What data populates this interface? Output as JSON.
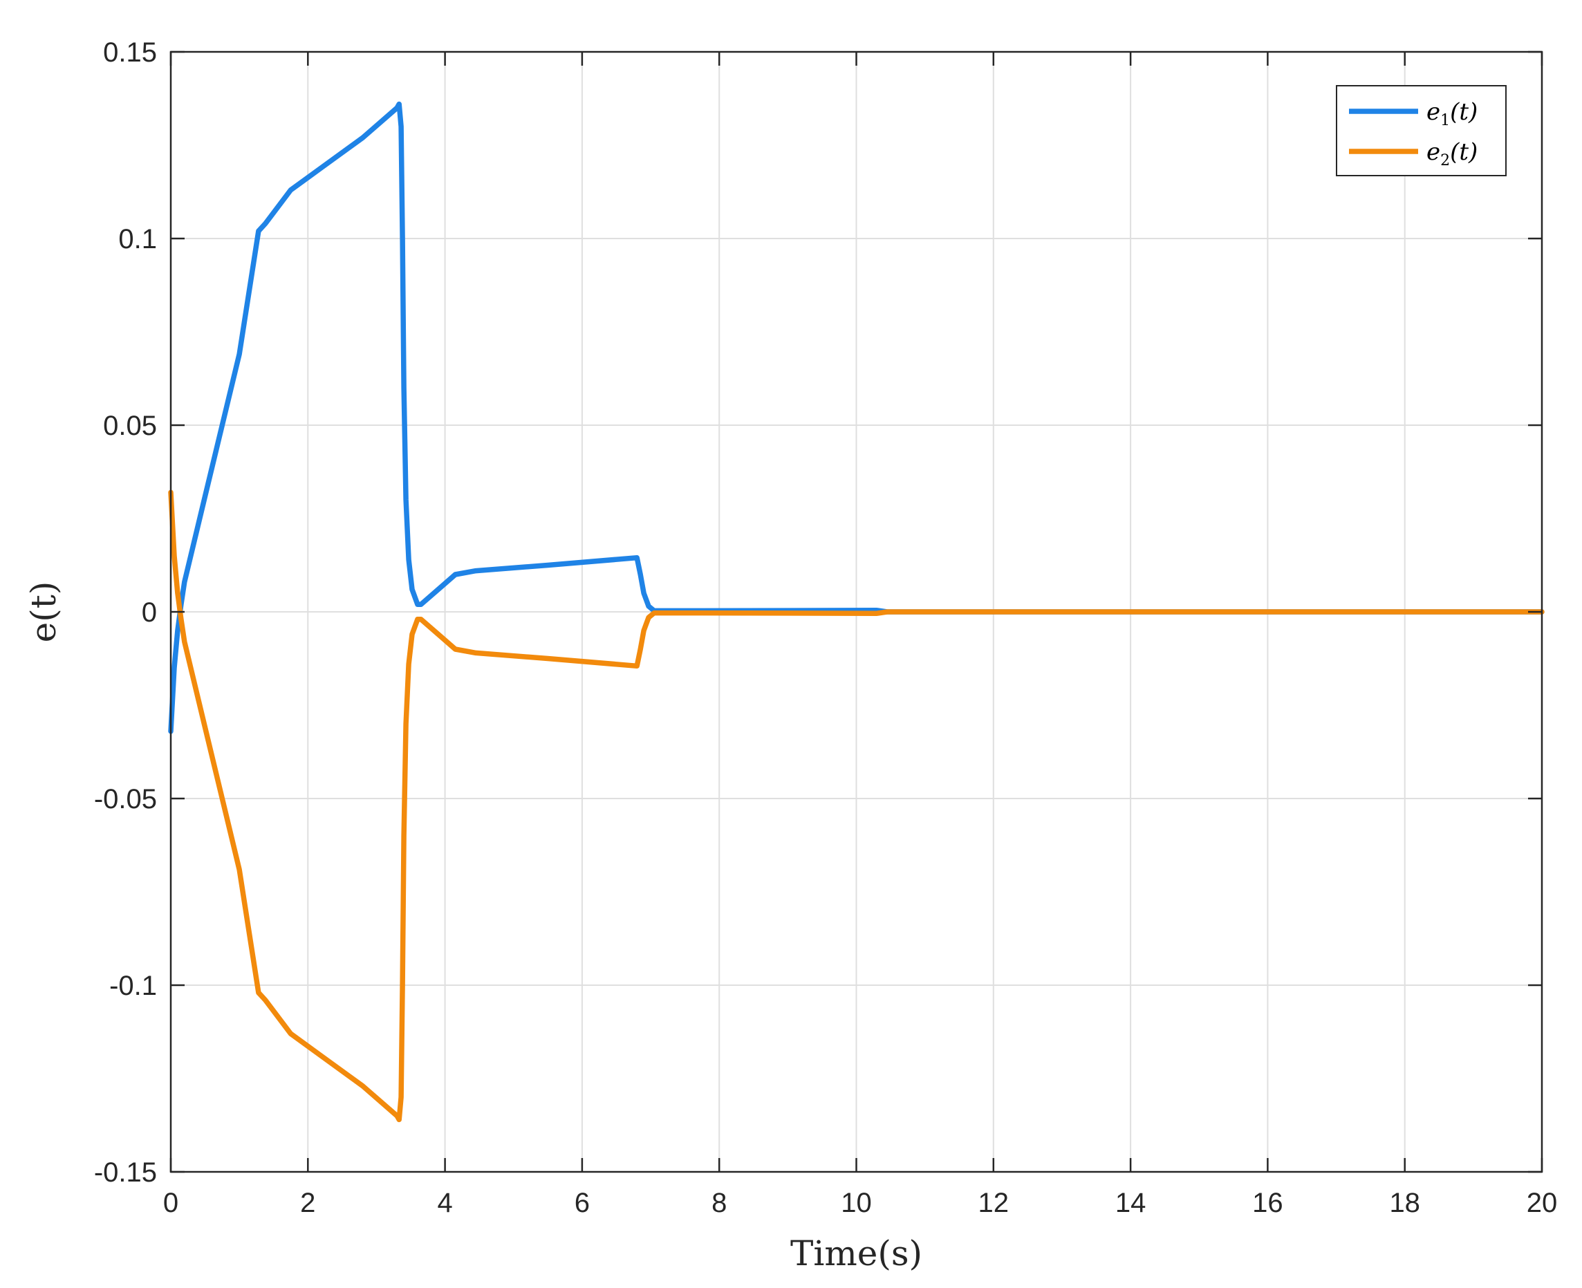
{
  "chart_data": {
    "type": "line",
    "xlabel": "Time(s)",
    "ylabel": "e(t)",
    "xlim": [
      0,
      20
    ],
    "ylim": [
      -0.15,
      0.15
    ],
    "x_ticks": [
      "0",
      "2",
      "4",
      "6",
      "8",
      "10",
      "12",
      "14",
      "16",
      "18",
      "20"
    ],
    "y_ticks": [
      "0.15",
      "0.1",
      "0.05",
      "0",
      "-0.05",
      "-0.1",
      "-0.15"
    ],
    "grid": true,
    "legend_position": "top-right",
    "series": [
      {
        "name": "e1(t)",
        "legend_base": "e",
        "legend_sub": "1",
        "legend_tail": "(t)",
        "color": "#1f83e6",
        "points": [
          [
            0.0,
            -0.032
          ],
          [
            0.05,
            -0.015
          ],
          [
            0.1,
            -0.005
          ],
          [
            0.15,
            0.002
          ],
          [
            0.2,
            0.008
          ],
          [
            0.5,
            0.031
          ],
          [
            1.0,
            0.069
          ],
          [
            1.28,
            0.102
          ],
          [
            1.38,
            0.104
          ],
          [
            1.75,
            0.113
          ],
          [
            2.2,
            0.119
          ],
          [
            2.8,
            0.127
          ],
          [
            3.3,
            0.135
          ],
          [
            3.33,
            0.136
          ],
          [
            3.36,
            0.13
          ],
          [
            3.38,
            0.1
          ],
          [
            3.4,
            0.06
          ],
          [
            3.43,
            0.03
          ],
          [
            3.47,
            0.014
          ],
          [
            3.52,
            0.006
          ],
          [
            3.6,
            0.002
          ],
          [
            3.65,
            0.002
          ],
          [
            4.15,
            0.01
          ],
          [
            4.45,
            0.011
          ],
          [
            5.5,
            0.0125
          ],
          [
            6.8,
            0.0145
          ],
          [
            6.85,
            0.01
          ],
          [
            6.9,
            0.005
          ],
          [
            6.97,
            0.0015
          ],
          [
            7.05,
            0.0003
          ],
          [
            7.5,
            0.0003
          ],
          [
            10.3,
            0.0004
          ],
          [
            10.45,
            0.0
          ],
          [
            20.0,
            0.0
          ]
        ]
      },
      {
        "name": "e2(t)",
        "legend_base": "e",
        "legend_sub": "2",
        "legend_tail": "(t)",
        "color": "#f28a0c",
        "points": [
          [
            0.0,
            0.032
          ],
          [
            0.05,
            0.015
          ],
          [
            0.1,
            0.005
          ],
          [
            0.15,
            -0.002
          ],
          [
            0.2,
            -0.008
          ],
          [
            0.5,
            -0.031
          ],
          [
            1.0,
            -0.069
          ],
          [
            1.28,
            -0.102
          ],
          [
            1.38,
            -0.104
          ],
          [
            1.75,
            -0.113
          ],
          [
            2.2,
            -0.119
          ],
          [
            2.8,
            -0.127
          ],
          [
            3.3,
            -0.135
          ],
          [
            3.33,
            -0.136
          ],
          [
            3.36,
            -0.13
          ],
          [
            3.38,
            -0.1
          ],
          [
            3.4,
            -0.06
          ],
          [
            3.43,
            -0.03
          ],
          [
            3.47,
            -0.014
          ],
          [
            3.52,
            -0.006
          ],
          [
            3.6,
            -0.002
          ],
          [
            3.65,
            -0.002
          ],
          [
            4.15,
            -0.01
          ],
          [
            4.45,
            -0.011
          ],
          [
            5.5,
            -0.0125
          ],
          [
            6.8,
            -0.0145
          ],
          [
            6.85,
            -0.01
          ],
          [
            6.9,
            -0.005
          ],
          [
            6.97,
            -0.0015
          ],
          [
            7.05,
            -0.0003
          ],
          [
            7.5,
            -0.0003
          ],
          [
            10.3,
            -0.0004
          ],
          [
            10.45,
            0.0
          ],
          [
            20.0,
            0.0
          ]
        ]
      }
    ]
  }
}
